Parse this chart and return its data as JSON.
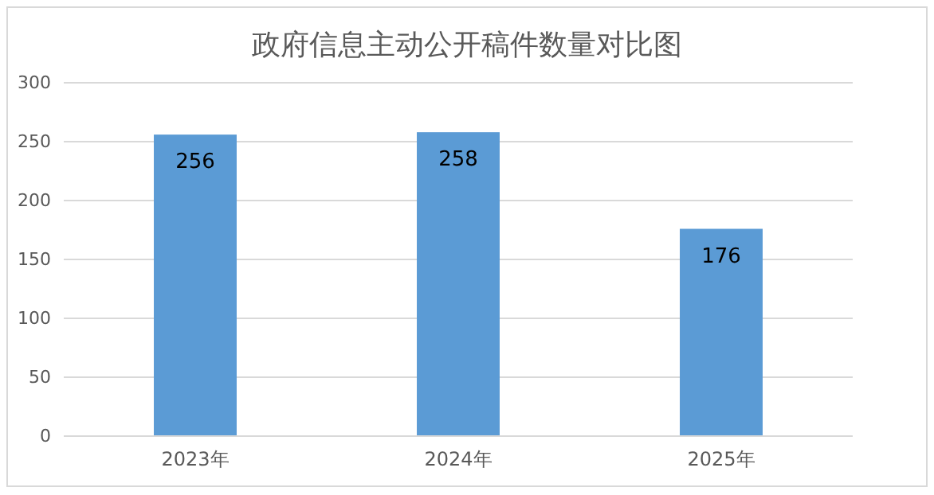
{
  "chart_data": {
    "type": "bar",
    "title": "政府信息主动公开稿件数量对比图",
    "categories": [
      "2023年",
      "2024年",
      "2025年"
    ],
    "values": [
      256,
      258,
      176
    ],
    "color": "#5b9bd5",
    "ylim": [
      0,
      300
    ],
    "yticks": [
      0,
      50,
      100,
      150,
      200,
      250,
      300
    ],
    "grid": "y",
    "data_labels": true
  }
}
